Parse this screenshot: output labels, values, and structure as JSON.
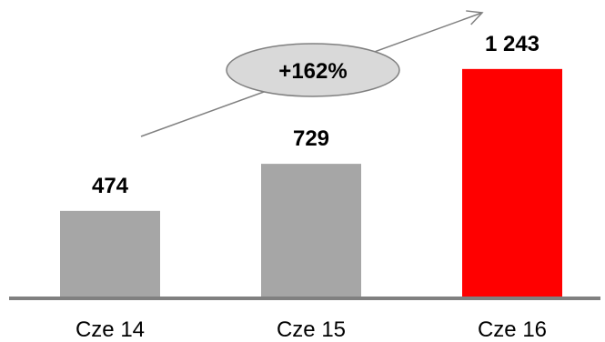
{
  "chart_data": {
    "type": "bar",
    "categories": [
      "Cze 14",
      "Cze 15",
      "Cze 16"
    ],
    "values": [
      474,
      729,
      1243
    ],
    "value_labels": [
      "474",
      "729",
      "1 243"
    ],
    "title": "",
    "xlabel": "",
    "ylabel": "",
    "ylim": [
      0,
      1400
    ],
    "grid": false,
    "legend": "none",
    "bar_colors": [
      "#a6a6a6",
      "#a6a6a6",
      "#ff0000"
    ],
    "annotation": {
      "text": "+162%",
      "shape": "ellipse",
      "fill": "#d9d9d9",
      "arrow": "trend-up"
    },
    "axis_color": "#808080"
  }
}
